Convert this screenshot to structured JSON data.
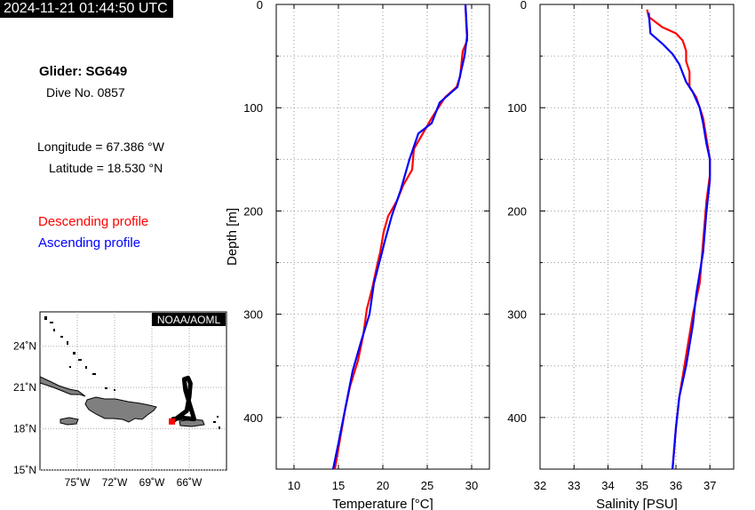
{
  "timestamp": "2024-11-21 01:44:50 UTC",
  "info": {
    "glider": "Glider: SG649",
    "dive": "Dive No. 0857",
    "longitude": "Longitude = 67.386 °W",
    "latitude": "Latitude = 18.530 °N",
    "descending_label": "Descending profile",
    "ascending_label": "Ascending profile"
  },
  "map": {
    "credit": "NOAA/AOML",
    "lat_ticks": [
      "24˚N",
      "21˚N",
      "18˚N",
      "15˚N"
    ],
    "lon_ticks": [
      "75˚W",
      "72˚W",
      "69˚W",
      "66˚W"
    ],
    "track": [
      [
        -67.4,
        18.53
      ],
      [
        -67.3,
        18.7
      ],
      [
        -66.6,
        18.8
      ],
      [
        -65.6,
        18.7
      ],
      [
        -65.9,
        19.6
      ],
      [
        -66.3,
        20.8
      ],
      [
        -66.4,
        21.6
      ],
      [
        -66.1,
        21.7
      ],
      [
        -65.9,
        21.3
      ],
      [
        -66.0,
        20.3
      ],
      [
        -66.2,
        19.3
      ],
      [
        -67.4,
        18.5
      ]
    ],
    "position": [
      -67.386,
      18.53
    ]
  },
  "colors": {
    "descending": "#ff0000",
    "ascending": "#0000ff"
  },
  "chart_data": [
    {
      "type": "line",
      "title": "",
      "xlabel": "Temperature [°C]",
      "ylabel": "Depth [m]",
      "xlim": [
        8,
        32
      ],
      "ylim": [
        450,
        0
      ],
      "x_ticks": [
        10,
        15,
        20,
        25,
        30
      ],
      "y_ticks": [
        0,
        100,
        200,
        300,
        400
      ],
      "grid": true,
      "series": [
        {
          "name": "Descending profile",
          "points": [
            [
              29.3,
              0
            ],
            [
              29.4,
              20
            ],
            [
              29.5,
              35
            ],
            [
              29.0,
              45
            ],
            [
              28.7,
              70
            ],
            [
              28.3,
              80
            ],
            [
              27.0,
              90
            ],
            [
              25.5,
              110
            ],
            [
              24.5,
              125
            ],
            [
              23.5,
              140
            ],
            [
              23.3,
              160
            ],
            [
              22.3,
              175
            ],
            [
              21.6,
              190
            ],
            [
              20.6,
              205
            ],
            [
              20.1,
              220
            ],
            [
              19.7,
              240
            ],
            [
              19.3,
              255
            ],
            [
              18.8,
              275
            ],
            [
              18.2,
              295
            ],
            [
              17.8,
              320
            ],
            [
              17.2,
              345
            ],
            [
              16.3,
              370
            ],
            [
              15.7,
              395
            ],
            [
              15.2,
              420
            ],
            [
              14.6,
              450
            ]
          ]
        },
        {
          "name": "Ascending profile",
          "points": [
            [
              29.3,
              0
            ],
            [
              29.5,
              30
            ],
            [
              29.2,
              50
            ],
            [
              28.4,
              80
            ],
            [
              26.4,
              95
            ],
            [
              25.5,
              115
            ],
            [
              24.0,
              125
            ],
            [
              23.0,
              150
            ],
            [
              22.0,
              180
            ],
            [
              21.0,
              205
            ],
            [
              20.2,
              230
            ],
            [
              19.0,
              270
            ],
            [
              18.5,
              300
            ],
            [
              17.6,
              325
            ],
            [
              16.6,
              355
            ],
            [
              15.8,
              390
            ],
            [
              15.0,
              425
            ],
            [
              14.4,
              450
            ]
          ]
        }
      ]
    },
    {
      "type": "line",
      "title": "",
      "xlabel": "Salinity [PSU]",
      "ylabel": "",
      "xlim": [
        32,
        37.7
      ],
      "ylim": [
        450,
        0
      ],
      "x_ticks": [
        32,
        33,
        34,
        35,
        36,
        37
      ],
      "y_ticks": [
        0,
        100,
        200,
        300,
        400
      ],
      "grid": true,
      "series": [
        {
          "name": "Descending profile",
          "points": [
            [
              35.15,
              5
            ],
            [
              35.2,
              12
            ],
            [
              35.6,
              22
            ],
            [
              36.0,
              28
            ],
            [
              36.2,
              35
            ],
            [
              36.3,
              45
            ],
            [
              36.3,
              55
            ],
            [
              36.4,
              65
            ],
            [
              36.4,
              80
            ],
            [
              36.6,
              90
            ],
            [
              36.8,
              110
            ],
            [
              36.9,
              130
            ],
            [
              37.0,
              150
            ],
            [
              37.0,
              165
            ],
            [
              36.9,
              190
            ],
            [
              36.8,
              230
            ],
            [
              36.7,
              270
            ],
            [
              36.5,
              300
            ],
            [
              36.3,
              340
            ],
            [
              36.1,
              380
            ],
            [
              36.0,
              410
            ],
            [
              35.9,
              450
            ]
          ]
        },
        {
          "name": "Ascending profile",
          "points": [
            [
              35.2,
              8
            ],
            [
              35.25,
              28
            ],
            [
              35.6,
              38
            ],
            [
              35.9,
              48
            ],
            [
              36.1,
              58
            ],
            [
              36.3,
              75
            ],
            [
              36.5,
              85
            ],
            [
              36.7,
              100
            ],
            [
              36.8,
              115
            ],
            [
              36.9,
              135
            ],
            [
              37.0,
              150
            ],
            [
              37.0,
              170
            ],
            [
              36.9,
              200
            ],
            [
              36.8,
              240
            ],
            [
              36.6,
              280
            ],
            [
              36.5,
              310
            ],
            [
              36.3,
              350
            ],
            [
              36.1,
              380
            ],
            [
              36.0,
              410
            ],
            [
              35.9,
              450
            ]
          ]
        }
      ]
    }
  ]
}
